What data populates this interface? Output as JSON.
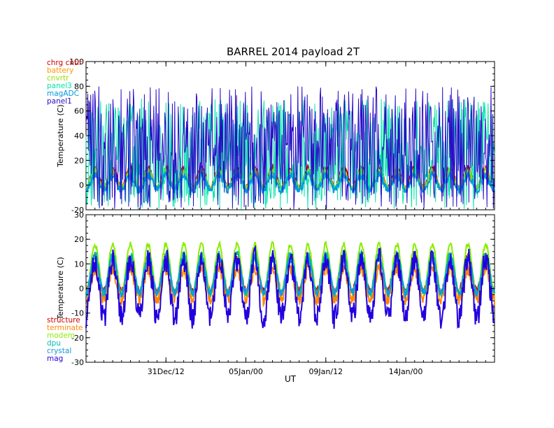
{
  "chart_data": [
    {
      "type": "line",
      "title": "BARREL 2014 payload 2T",
      "ylabel": "Temperature (C)",
      "xlabel": "",
      "ylim": [
        -20,
        100
      ],
      "yticks": [
        -20,
        0,
        20,
        40,
        60,
        80,
        100
      ],
      "legend_position": "top-left",
      "series": [
        {
          "name": "chrg cntlr",
          "color": "#cc0000",
          "kind": "diurnal",
          "mean": 6,
          "amp": 8,
          "noise": 2
        },
        {
          "name": "battery",
          "color": "#ff9900",
          "kind": "diurnal",
          "mean": 4,
          "amp": 6,
          "noise": 1.5
        },
        {
          "name": "cnvrtr",
          "color": "#99dd00",
          "kind": "diurnal",
          "mean": 5,
          "amp": 7,
          "noise": 1.5
        },
        {
          "name": "panel3",
          "color": "#00e5a8",
          "kind": "noise",
          "mean": 25,
          "spread": 45
        },
        {
          "name": "magADC",
          "color": "#0099dd",
          "kind": "diurnal",
          "mean": 2,
          "amp": 6,
          "noise": 3
        },
        {
          "name": "panel1",
          "color": "#2a0cc8",
          "kind": "noise",
          "mean": 30,
          "spread": 50
        }
      ]
    },
    {
      "type": "line",
      "title": "",
      "ylabel": "Temperature (C)",
      "xlabel": "UT",
      "ylim": [
        -30,
        30
      ],
      "yticks": [
        -30,
        -20,
        -10,
        0,
        10,
        20,
        30
      ],
      "x_tick_labels": [
        "31Dec/12",
        "05Jan/00",
        "09Jan/12",
        "14Jan/00"
      ],
      "legend_position": "bottom-left",
      "series": [
        {
          "name": "structure",
          "color": "#cc0000",
          "kind": "diurnal",
          "mean": 6,
          "amp": 7,
          "noise": 1.5
        },
        {
          "name": "terminate",
          "color": "#ff8800",
          "kind": "diurnal",
          "mean": 2,
          "amp": 6,
          "noise": 3
        },
        {
          "name": "modem",
          "color": "#88ee00",
          "kind": "diurnal",
          "mean": 8,
          "amp": 10,
          "noise": 1
        },
        {
          "name": "dpu",
          "color": "#00bbaa",
          "kind": "diurnal",
          "mean": 6,
          "amp": 8,
          "noise": 1.5
        },
        {
          "name": "crystal",
          "color": "#1199dd",
          "kind": "diurnal",
          "mean": 5,
          "amp": 7,
          "noise": 1.5
        },
        {
          "name": "mag",
          "color": "#2200dd",
          "kind": "diurnal",
          "mean": 0,
          "amp": 12,
          "noise": 5
        }
      ]
    }
  ],
  "time_axis": {
    "start": "2013-12-27T00:00",
    "end": "2014-01-19T00:00",
    "ticks": [
      "2013-12-31T12:00",
      "2014-01-05T00:00",
      "2014-01-09T12:00",
      "2014-01-14T00:00"
    ]
  }
}
